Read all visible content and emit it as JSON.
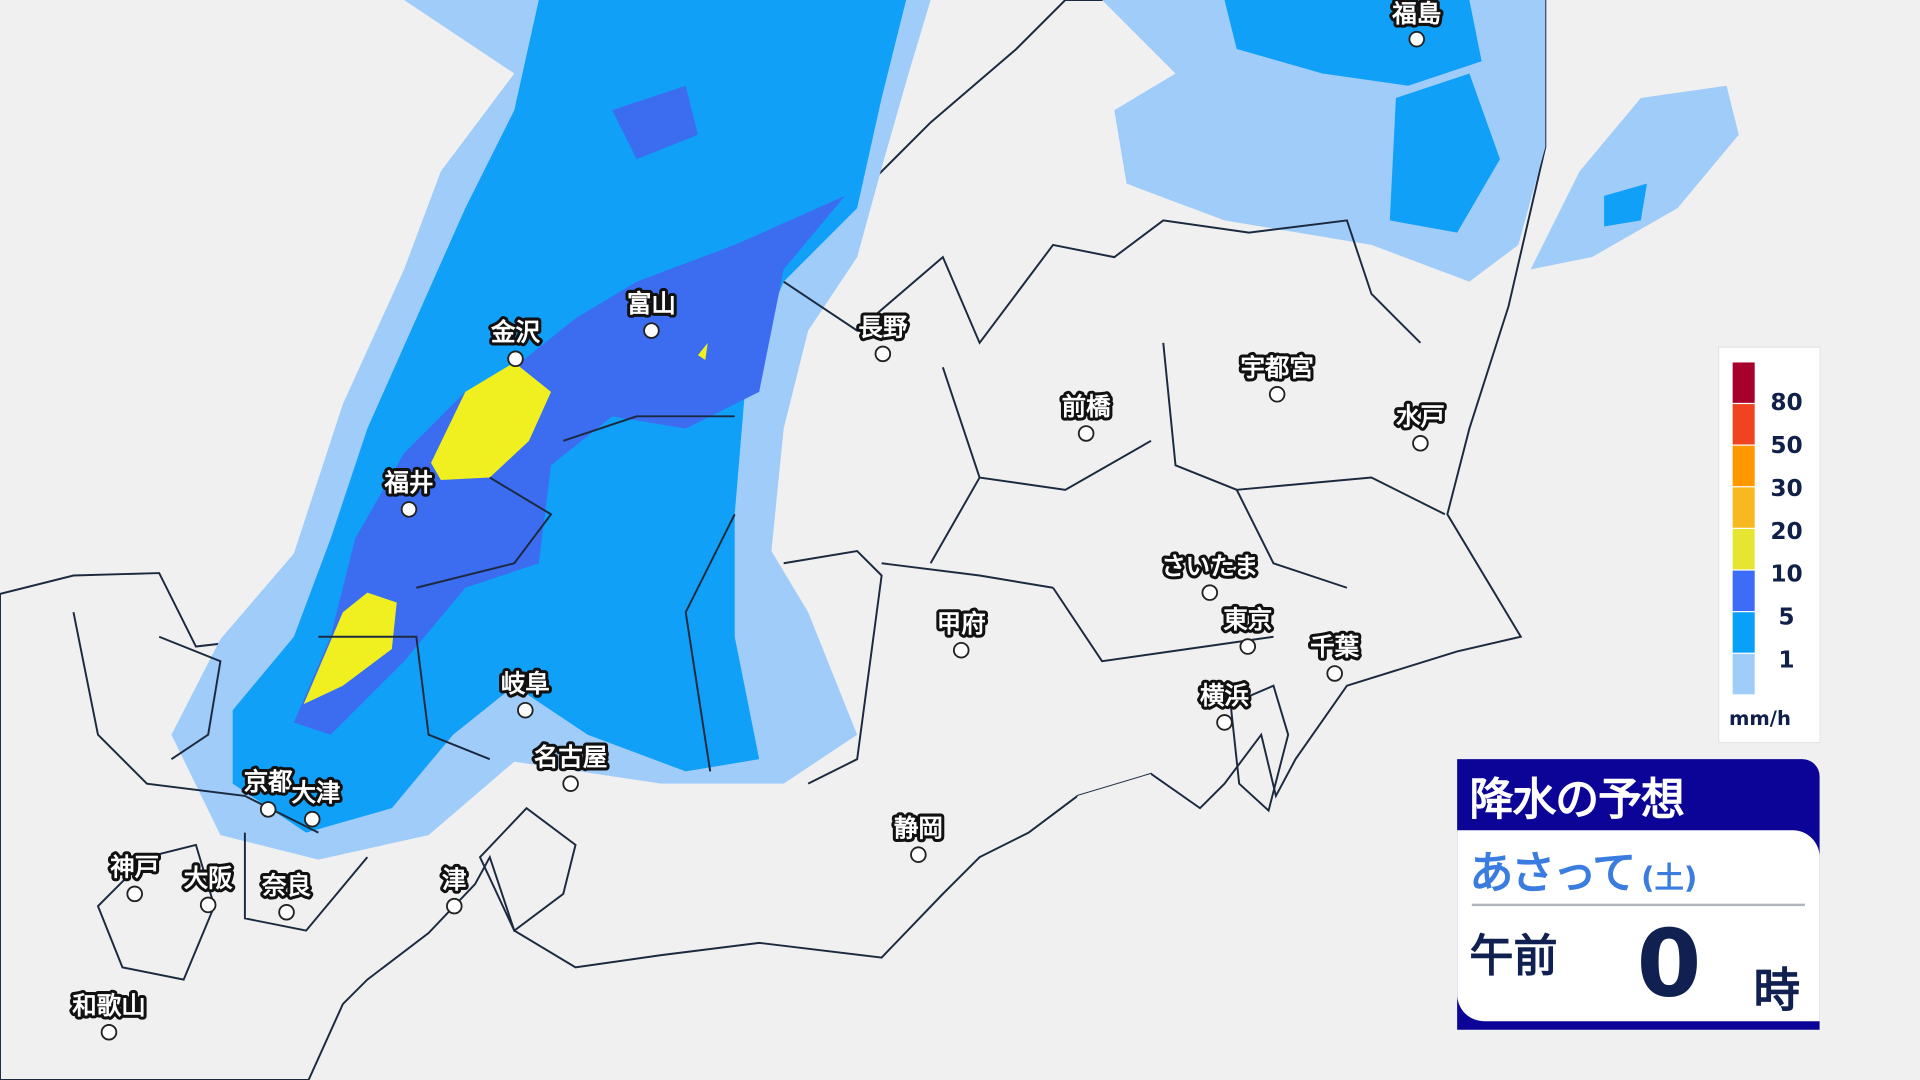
{
  "colors": {
    "sea": "#f0f0f0",
    "land": "#21a060",
    "rain_1": "#a0ccfa",
    "rain_5": "#10a0f8",
    "rain_10": "#3c6cf0",
    "rain_20": "#f0f020",
    "panel_header": "#0c0496"
  },
  "cities": {
    "fukushima": "福島",
    "kanazawa": "金沢",
    "toyama": "富山",
    "nagano": "長野",
    "utsunomiya": "宇都宮",
    "maebashi": "前橋",
    "mito": "水戸",
    "fukui": "福井",
    "saitama": "さいたま",
    "kofu": "甲府",
    "tokyo": "東京",
    "chiba": "千葉",
    "yokohama": "横浜",
    "gifu": "岐阜",
    "nagoya": "名古屋",
    "kyoto": "京都",
    "otsu": "大津",
    "shizuoka": "静岡",
    "kobe": "神戸",
    "osaka": "大阪",
    "nara": "奈良",
    "tsu": "津",
    "wakayama": "和歌山"
  },
  "legend": {
    "levels": [
      {
        "value": "80",
        "color": "#a8002c"
      },
      {
        "value": "50",
        "color": "#f04420"
      },
      {
        "value": "30",
        "color": "#ff9800"
      },
      {
        "value": "20",
        "color": "#f8b820"
      },
      {
        "value": "10",
        "color": "#e6e632"
      },
      {
        "value": "5",
        "color": "#3c6cf8"
      },
      {
        "value": "1",
        "color": "#08a0f8"
      },
      {
        "value": "",
        "color": "#a0ccfa"
      }
    ],
    "unit": "mm/h"
  },
  "panel": {
    "title": "降水の予想",
    "day": "あさって",
    "weekday": "(土)",
    "ampm": "午前",
    "hour": "0",
    "hour_unit": "時"
  }
}
